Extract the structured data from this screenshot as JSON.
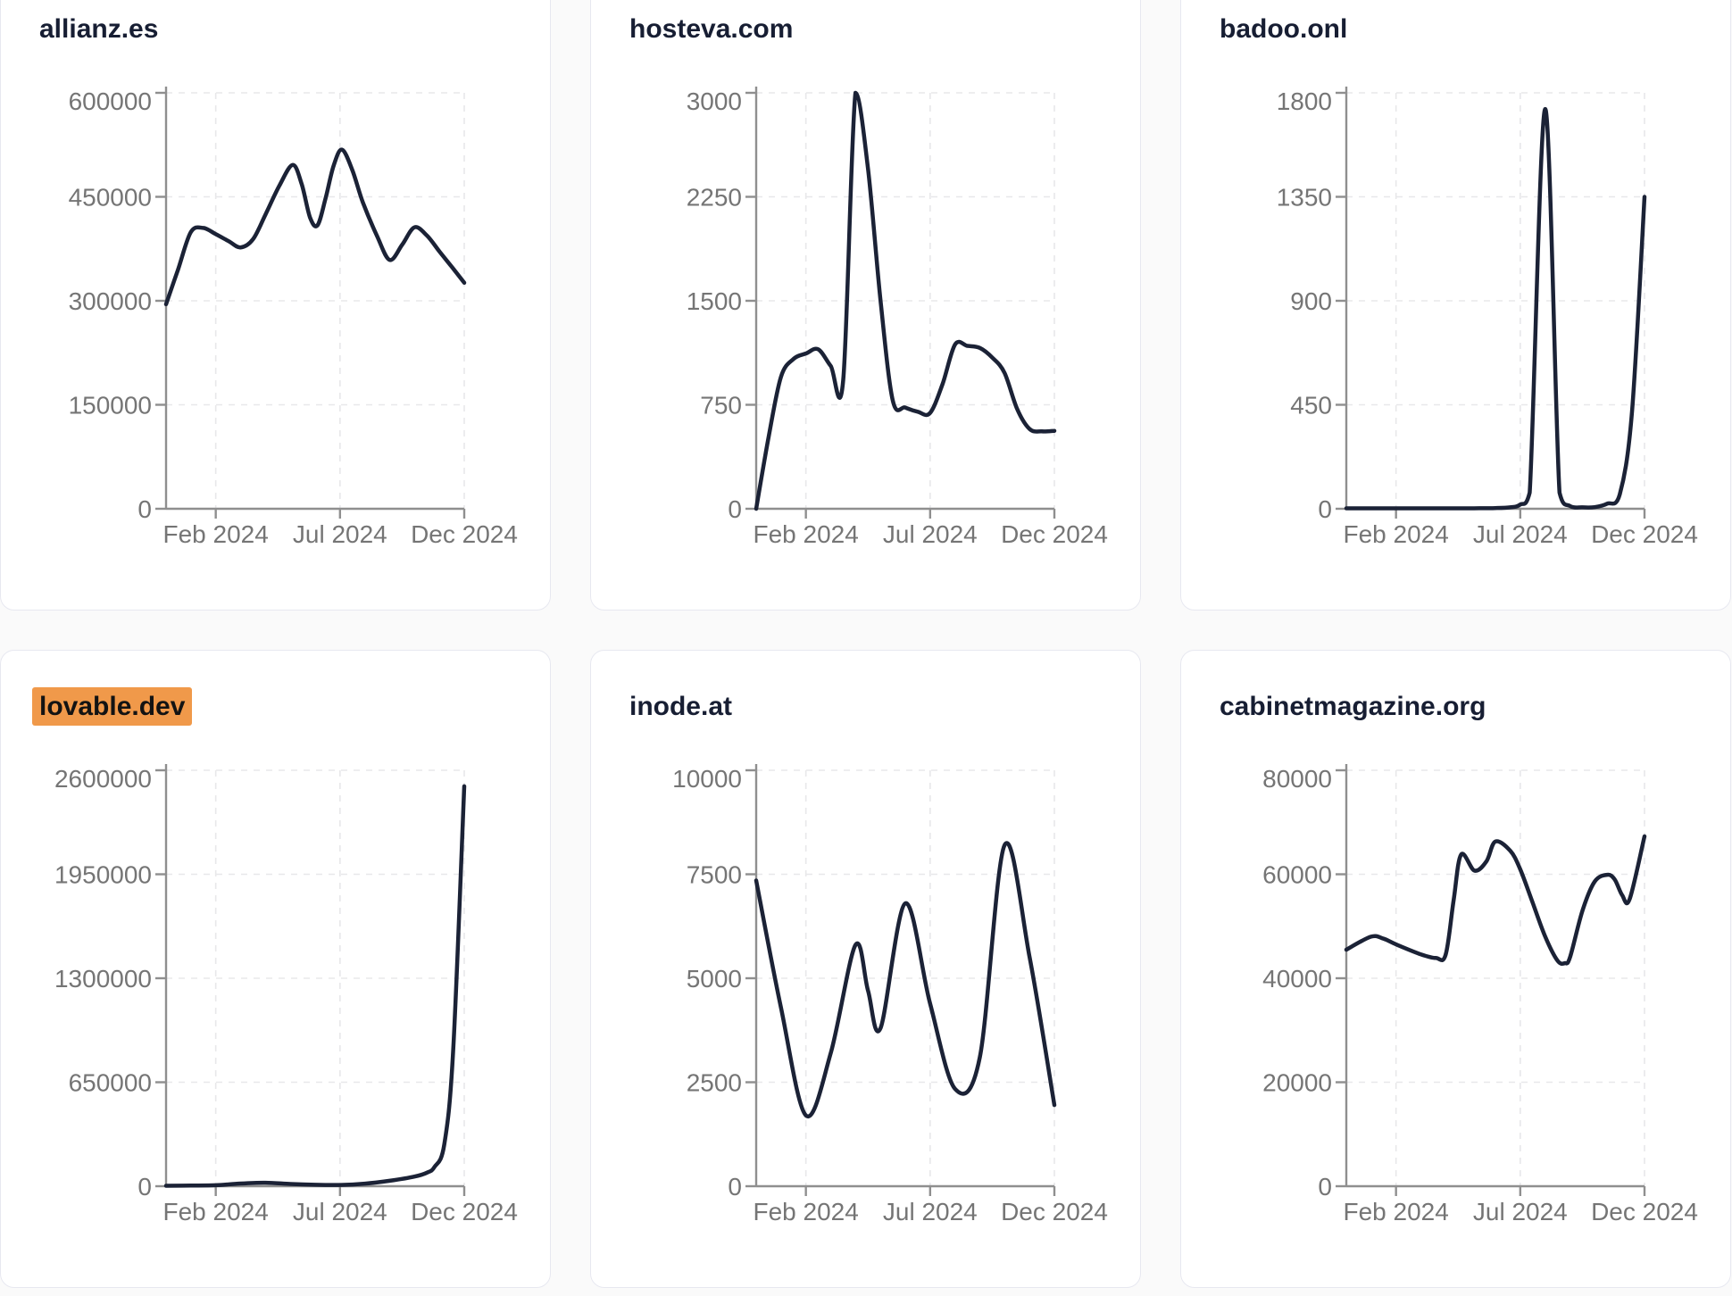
{
  "colors": {
    "series_line": "#1b2236",
    "title_text": "#171e33",
    "highlight_bg": "#f0994a",
    "highlight_text": "#131313",
    "axis_line": "#8f8f8f",
    "tick_label": "#757575",
    "gridline": "#e8e8ea",
    "card_bg": "#ffffff",
    "card_border": "#e7e8f0",
    "page_bg": "#fafafa"
  },
  "layout_note": "3x2 grid of traffic trend line charts",
  "chart_data": [
    {
      "type": "line",
      "title": "allianz.es",
      "highlighted": false,
      "y_max": 600000,
      "y_ticks": [
        {
          "value": 0,
          "label": "0"
        },
        {
          "value": 150000,
          "label": "150000"
        },
        {
          "value": 300000,
          "label": "300000"
        },
        {
          "value": 450000,
          "label": "450000"
        },
        {
          "value": 600000,
          "label": "600000"
        }
      ],
      "x_ticks": [
        {
          "pos": 0.16667,
          "label": "Feb 2024"
        },
        {
          "pos": 0.58333,
          "label": "Jul 2024"
        },
        {
          "pos": 1,
          "label": "Dec 2024"
        }
      ],
      "grid": true,
      "legend": false,
      "points": [
        [
          0,
          295000
        ],
        [
          0.04,
          345000
        ],
        [
          0.083,
          399000
        ],
        [
          0.125,
          405000
        ],
        [
          0.167,
          396000
        ],
        [
          0.21,
          386000
        ],
        [
          0.25,
          377000
        ],
        [
          0.292,
          389000
        ],
        [
          0.333,
          424000
        ],
        [
          0.38,
          466000
        ],
        [
          0.425,
          496000
        ],
        [
          0.455,
          468000
        ],
        [
          0.483,
          420000
        ],
        [
          0.508,
          409000
        ],
        [
          0.535,
          448000
        ],
        [
          0.562,
          495000
        ],
        [
          0.59,
          518000
        ],
        [
          0.625,
          488000
        ],
        [
          0.66,
          442000
        ],
        [
          0.708,
          393000
        ],
        [
          0.75,
          359000
        ],
        [
          0.792,
          381000
        ],
        [
          0.833,
          406000
        ],
        [
          0.875,
          394000
        ],
        [
          0.917,
          371000
        ],
        [
          0.958,
          349000
        ],
        [
          1,
          326000
        ]
      ]
    },
    {
      "type": "line",
      "title": "hosteva.com",
      "highlighted": false,
      "y_max": 3000,
      "y_ticks": [
        {
          "value": 0,
          "label": "0"
        },
        {
          "value": 750,
          "label": "750"
        },
        {
          "value": 1500,
          "label": "1500"
        },
        {
          "value": 2250,
          "label": "2250"
        },
        {
          "value": 3000,
          "label": "3000"
        }
      ],
      "x_ticks": [
        {
          "pos": 0.16667,
          "label": "Feb 2024"
        },
        {
          "pos": 0.58333,
          "label": "Jul 2024"
        },
        {
          "pos": 1,
          "label": "Dec 2024"
        }
      ],
      "grid": true,
      "legend": false,
      "points": [
        [
          0,
          0
        ],
        [
          0.042,
          520
        ],
        [
          0.083,
          950
        ],
        [
          0.125,
          1080
        ],
        [
          0.167,
          1120
        ],
        [
          0.208,
          1150
        ],
        [
          0.25,
          1030
        ],
        [
          0.292,
          930
        ],
        [
          0.333,
          3000
        ],
        [
          0.375,
          2450
        ],
        [
          0.417,
          1500
        ],
        [
          0.458,
          780
        ],
        [
          0.5,
          730
        ],
        [
          0.542,
          700
        ],
        [
          0.583,
          690
        ],
        [
          0.625,
          900
        ],
        [
          0.667,
          1185
        ],
        [
          0.708,
          1175
        ],
        [
          0.75,
          1160
        ],
        [
          0.792,
          1090
        ],
        [
          0.833,
          980
        ],
        [
          0.875,
          720
        ],
        [
          0.917,
          575
        ],
        [
          0.958,
          558
        ],
        [
          1,
          562
        ]
      ]
    },
    {
      "type": "line",
      "title": "badoo.onl",
      "highlighted": false,
      "y_max": 1800,
      "y_ticks": [
        {
          "value": 0,
          "label": "0"
        },
        {
          "value": 450,
          "label": "450"
        },
        {
          "value": 900,
          "label": "900"
        },
        {
          "value": 1350,
          "label": "1350"
        },
        {
          "value": 1800,
          "label": "1800"
        }
      ],
      "x_ticks": [
        {
          "pos": 0.16667,
          "label": "Feb 2024"
        },
        {
          "pos": 0.58333,
          "label": "Jul 2024"
        },
        {
          "pos": 1,
          "label": "Dec 2024"
        }
      ],
      "grid": true,
      "legend": false,
      "points": [
        [
          0,
          2
        ],
        [
          0.083,
          2
        ],
        [
          0.167,
          2
        ],
        [
          0.25,
          2
        ],
        [
          0.333,
          2
        ],
        [
          0.417,
          2
        ],
        [
          0.5,
          3
        ],
        [
          0.55,
          6
        ],
        [
          0.583,
          18
        ],
        [
          0.615,
          70
        ],
        [
          0.667,
          1730
        ],
        [
          0.715,
          70
        ],
        [
          0.75,
          12
        ],
        [
          0.792,
          6
        ],
        [
          0.833,
          7
        ],
        [
          0.875,
          22
        ],
        [
          0.917,
          62
        ],
        [
          0.958,
          420
        ],
        [
          1,
          1350
        ]
      ]
    },
    {
      "type": "line",
      "title": "lovable.dev",
      "highlighted": true,
      "y_max": 2600000,
      "y_ticks": [
        {
          "value": 0,
          "label": "0"
        },
        {
          "value": 650000,
          "label": "650000"
        },
        {
          "value": 1300000,
          "label": "1300000"
        },
        {
          "value": 1950000,
          "label": "1950000"
        },
        {
          "value": 2600000,
          "label": "2600000"
        }
      ],
      "x_ticks": [
        {
          "pos": 0.16667,
          "label": "Feb 2024"
        },
        {
          "pos": 0.58333,
          "label": "Jul 2024"
        },
        {
          "pos": 1,
          "label": "Dec 2024"
        }
      ],
      "grid": true,
      "legend": false,
      "points": [
        [
          0,
          3000
        ],
        [
          0.083,
          4000
        ],
        [
          0.167,
          6000
        ],
        [
          0.25,
          17000
        ],
        [
          0.333,
          22000
        ],
        [
          0.417,
          14000
        ],
        [
          0.5,
          9000
        ],
        [
          0.583,
          8000
        ],
        [
          0.667,
          16000
        ],
        [
          0.75,
          34000
        ],
        [
          0.833,
          60000
        ],
        [
          0.875,
          85000
        ],
        [
          0.9,
          120000
        ],
        [
          0.933,
          260000
        ],
        [
          0.963,
          850000
        ],
        [
          1,
          2500000
        ]
      ]
    },
    {
      "type": "line",
      "title": "inode.at",
      "highlighted": false,
      "y_max": 10000,
      "y_ticks": [
        {
          "value": 0,
          "label": "0"
        },
        {
          "value": 2500,
          "label": "2500"
        },
        {
          "value": 5000,
          "label": "5000"
        },
        {
          "value": 7500,
          "label": "7500"
        },
        {
          "value": 10000,
          "label": "10000"
        }
      ],
      "x_ticks": [
        {
          "pos": 0.16667,
          "label": "Feb 2024"
        },
        {
          "pos": 0.58333,
          "label": "Jul 2024"
        },
        {
          "pos": 1,
          "label": "Dec 2024"
        }
      ],
      "grid": true,
      "legend": false,
      "points": [
        [
          0,
          7350
        ],
        [
          0.083,
          4300
        ],
        [
          0.167,
          1700
        ],
        [
          0.25,
          3200
        ],
        [
          0.333,
          5800
        ],
        [
          0.375,
          4700
        ],
        [
          0.417,
          3800
        ],
        [
          0.5,
          6800
        ],
        [
          0.583,
          4400
        ],
        [
          0.667,
          2340
        ],
        [
          0.75,
          3100
        ],
        [
          0.833,
          8200
        ],
        [
          0.917,
          5500
        ],
        [
          1,
          1950
        ]
      ]
    },
    {
      "type": "line",
      "title": "cabinetmagazine.org",
      "highlighted": false,
      "y_max": 80000,
      "y_ticks": [
        {
          "value": 0,
          "label": "0"
        },
        {
          "value": 20000,
          "label": "20000"
        },
        {
          "value": 40000,
          "label": "40000"
        },
        {
          "value": 60000,
          "label": "60000"
        },
        {
          "value": 80000,
          "label": "80000"
        }
      ],
      "x_ticks": [
        {
          "pos": 0.16667,
          "label": "Feb 2024"
        },
        {
          "pos": 0.58333,
          "label": "Jul 2024"
        },
        {
          "pos": 1,
          "label": "Dec 2024"
        }
      ],
      "grid": true,
      "legend": false,
      "points": [
        [
          0,
          45500
        ],
        [
          0.083,
          48000
        ],
        [
          0.125,
          47600
        ],
        [
          0.167,
          46500
        ],
        [
          0.25,
          44600
        ],
        [
          0.3,
          43900
        ],
        [
          0.333,
          44500
        ],
        [
          0.36,
          55000
        ],
        [
          0.385,
          63800
        ],
        [
          0.43,
          60700
        ],
        [
          0.47,
          62500
        ],
        [
          0.5,
          66300
        ],
        [
          0.55,
          64500
        ],
        [
          0.583,
          61000
        ],
        [
          0.625,
          54500
        ],
        [
          0.667,
          48000
        ],
        [
          0.708,
          43400
        ],
        [
          0.733,
          42900
        ],
        [
          0.75,
          44000
        ],
        [
          0.792,
          53000
        ],
        [
          0.833,
          58600
        ],
        [
          0.875,
          59900
        ],
        [
          0.9,
          59000
        ],
        [
          0.925,
          56000
        ],
        [
          0.95,
          55200
        ],
        [
          1,
          67300
        ]
      ]
    }
  ]
}
